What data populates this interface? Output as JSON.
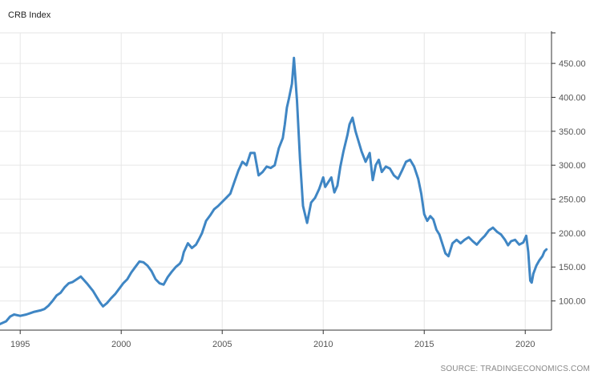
{
  "chart_data": {
    "type": "line",
    "title": "CRB Index",
    "source": "SOURCE: TRADINGECONOMICS.COM",
    "xlabel": "",
    "ylabel": "",
    "xlim": [
      1994.0,
      2021.3
    ],
    "ylim": [
      57,
      495
    ],
    "x_ticks": [
      1995,
      2000,
      2005,
      2010,
      2015,
      2020
    ],
    "y_ticks": [
      100,
      150,
      200,
      250,
      300,
      350,
      400,
      450
    ],
    "y_tick_labels": [
      "100.00",
      "150.00",
      "200.00",
      "250.00",
      "300.00",
      "350.00",
      "400.00",
      "450.00"
    ],
    "grid": true,
    "y_axis_side": "right",
    "line_color": "#3f86c4",
    "series": [
      {
        "x": [
          1994.0,
          1994.3,
          1994.5,
          1994.7,
          1995.0,
          1995.3,
          1995.5,
          1995.7,
          1996.0,
          1996.2,
          1996.4,
          1996.6,
          1996.8,
          1997.0,
          1997.2,
          1997.4,
          1997.6,
          1997.8,
          1998.0,
          1998.3,
          1998.6,
          1998.8,
          1998.95,
          1999.1,
          1999.3,
          1999.5,
          1999.7,
          1999.9,
          2000.1,
          2000.3,
          2000.5,
          2000.7,
          2000.9,
          2001.1,
          2001.3,
          2001.5,
          2001.7,
          2001.9,
          2002.1,
          2002.3,
          2002.5,
          2002.7,
          2002.9,
          2003.0,
          2003.1,
          2003.3,
          2003.5,
          2003.7,
          2003.85,
          2004.0,
          2004.2,
          2004.4,
          2004.6,
          2004.8,
          2005.0,
          2005.2,
          2005.4,
          2005.6,
          2005.8,
          2006.0,
          2006.2,
          2006.4,
          2006.6,
          2006.8,
          2007.0,
          2007.2,
          2007.4,
          2007.6,
          2007.8,
          2008.0,
          2008.1,
          2008.2,
          2008.3,
          2008.45,
          2008.55,
          2008.7,
          2008.85,
          2009.0,
          2009.2,
          2009.4,
          2009.6,
          2009.8,
          2010.0,
          2010.1,
          2010.25,
          2010.4,
          2010.55,
          2010.7,
          2010.85,
          2011.0,
          2011.2,
          2011.3,
          2011.45,
          2011.6,
          2011.75,
          2011.9,
          2012.1,
          2012.3,
          2012.45,
          2012.6,
          2012.75,
          2012.9,
          2013.1,
          2013.3,
          2013.5,
          2013.7,
          2013.9,
          2014.1,
          2014.3,
          2014.5,
          2014.7,
          2014.85,
          2015.0,
          2015.15,
          2015.3,
          2015.45,
          2015.6,
          2015.75,
          2015.9,
          2016.05,
          2016.2,
          2016.4,
          2016.6,
          2016.8,
          2017.0,
          2017.2,
          2017.4,
          2017.6,
          2017.8,
          2018.0,
          2018.2,
          2018.4,
          2018.6,
          2018.8,
          2019.0,
          2019.15,
          2019.3,
          2019.5,
          2019.7,
          2019.9,
          2020.05,
          2020.15,
          2020.25,
          2020.32,
          2020.4,
          2020.55,
          2020.7,
          2020.85,
          2020.95,
          2021.05
        ],
        "values": [
          66,
          70,
          77,
          80,
          78,
          80,
          82,
          84,
          86,
          88,
          93,
          100,
          108,
          112,
          120,
          126,
          128,
          132,
          136,
          126,
          115,
          105,
          98,
          92,
          97,
          104,
          110,
          118,
          126,
          132,
          142,
          150,
          158,
          157,
          152,
          144,
          132,
          126,
          124,
          135,
          143,
          150,
          155,
          160,
          172,
          185,
          178,
          183,
          191,
          200,
          218,
          226,
          235,
          240,
          246,
          252,
          258,
          275,
          292,
          305,
          300,
          318,
          318,
          285,
          290,
          298,
          296,
          300,
          325,
          340,
          360,
          385,
          398,
          420,
          458,
          395,
          310,
          240,
          215,
          245,
          252,
          265,
          282,
          268,
          275,
          282,
          260,
          270,
          298,
          320,
          345,
          360,
          370,
          350,
          335,
          320,
          305,
          318,
          278,
          300,
          308,
          290,
          298,
          295,
          285,
          280,
          292,
          305,
          308,
          298,
          280,
          258,
          228,
          218,
          225,
          220,
          205,
          198,
          184,
          170,
          166,
          185,
          190,
          185,
          190,
          194,
          188,
          183,
          190,
          196,
          204,
          208,
          202,
          198,
          190,
          182,
          188,
          190,
          183,
          186,
          196,
          172,
          130,
          127,
          140,
          152,
          160,
          166,
          173,
          176
        ]
      }
    ]
  }
}
